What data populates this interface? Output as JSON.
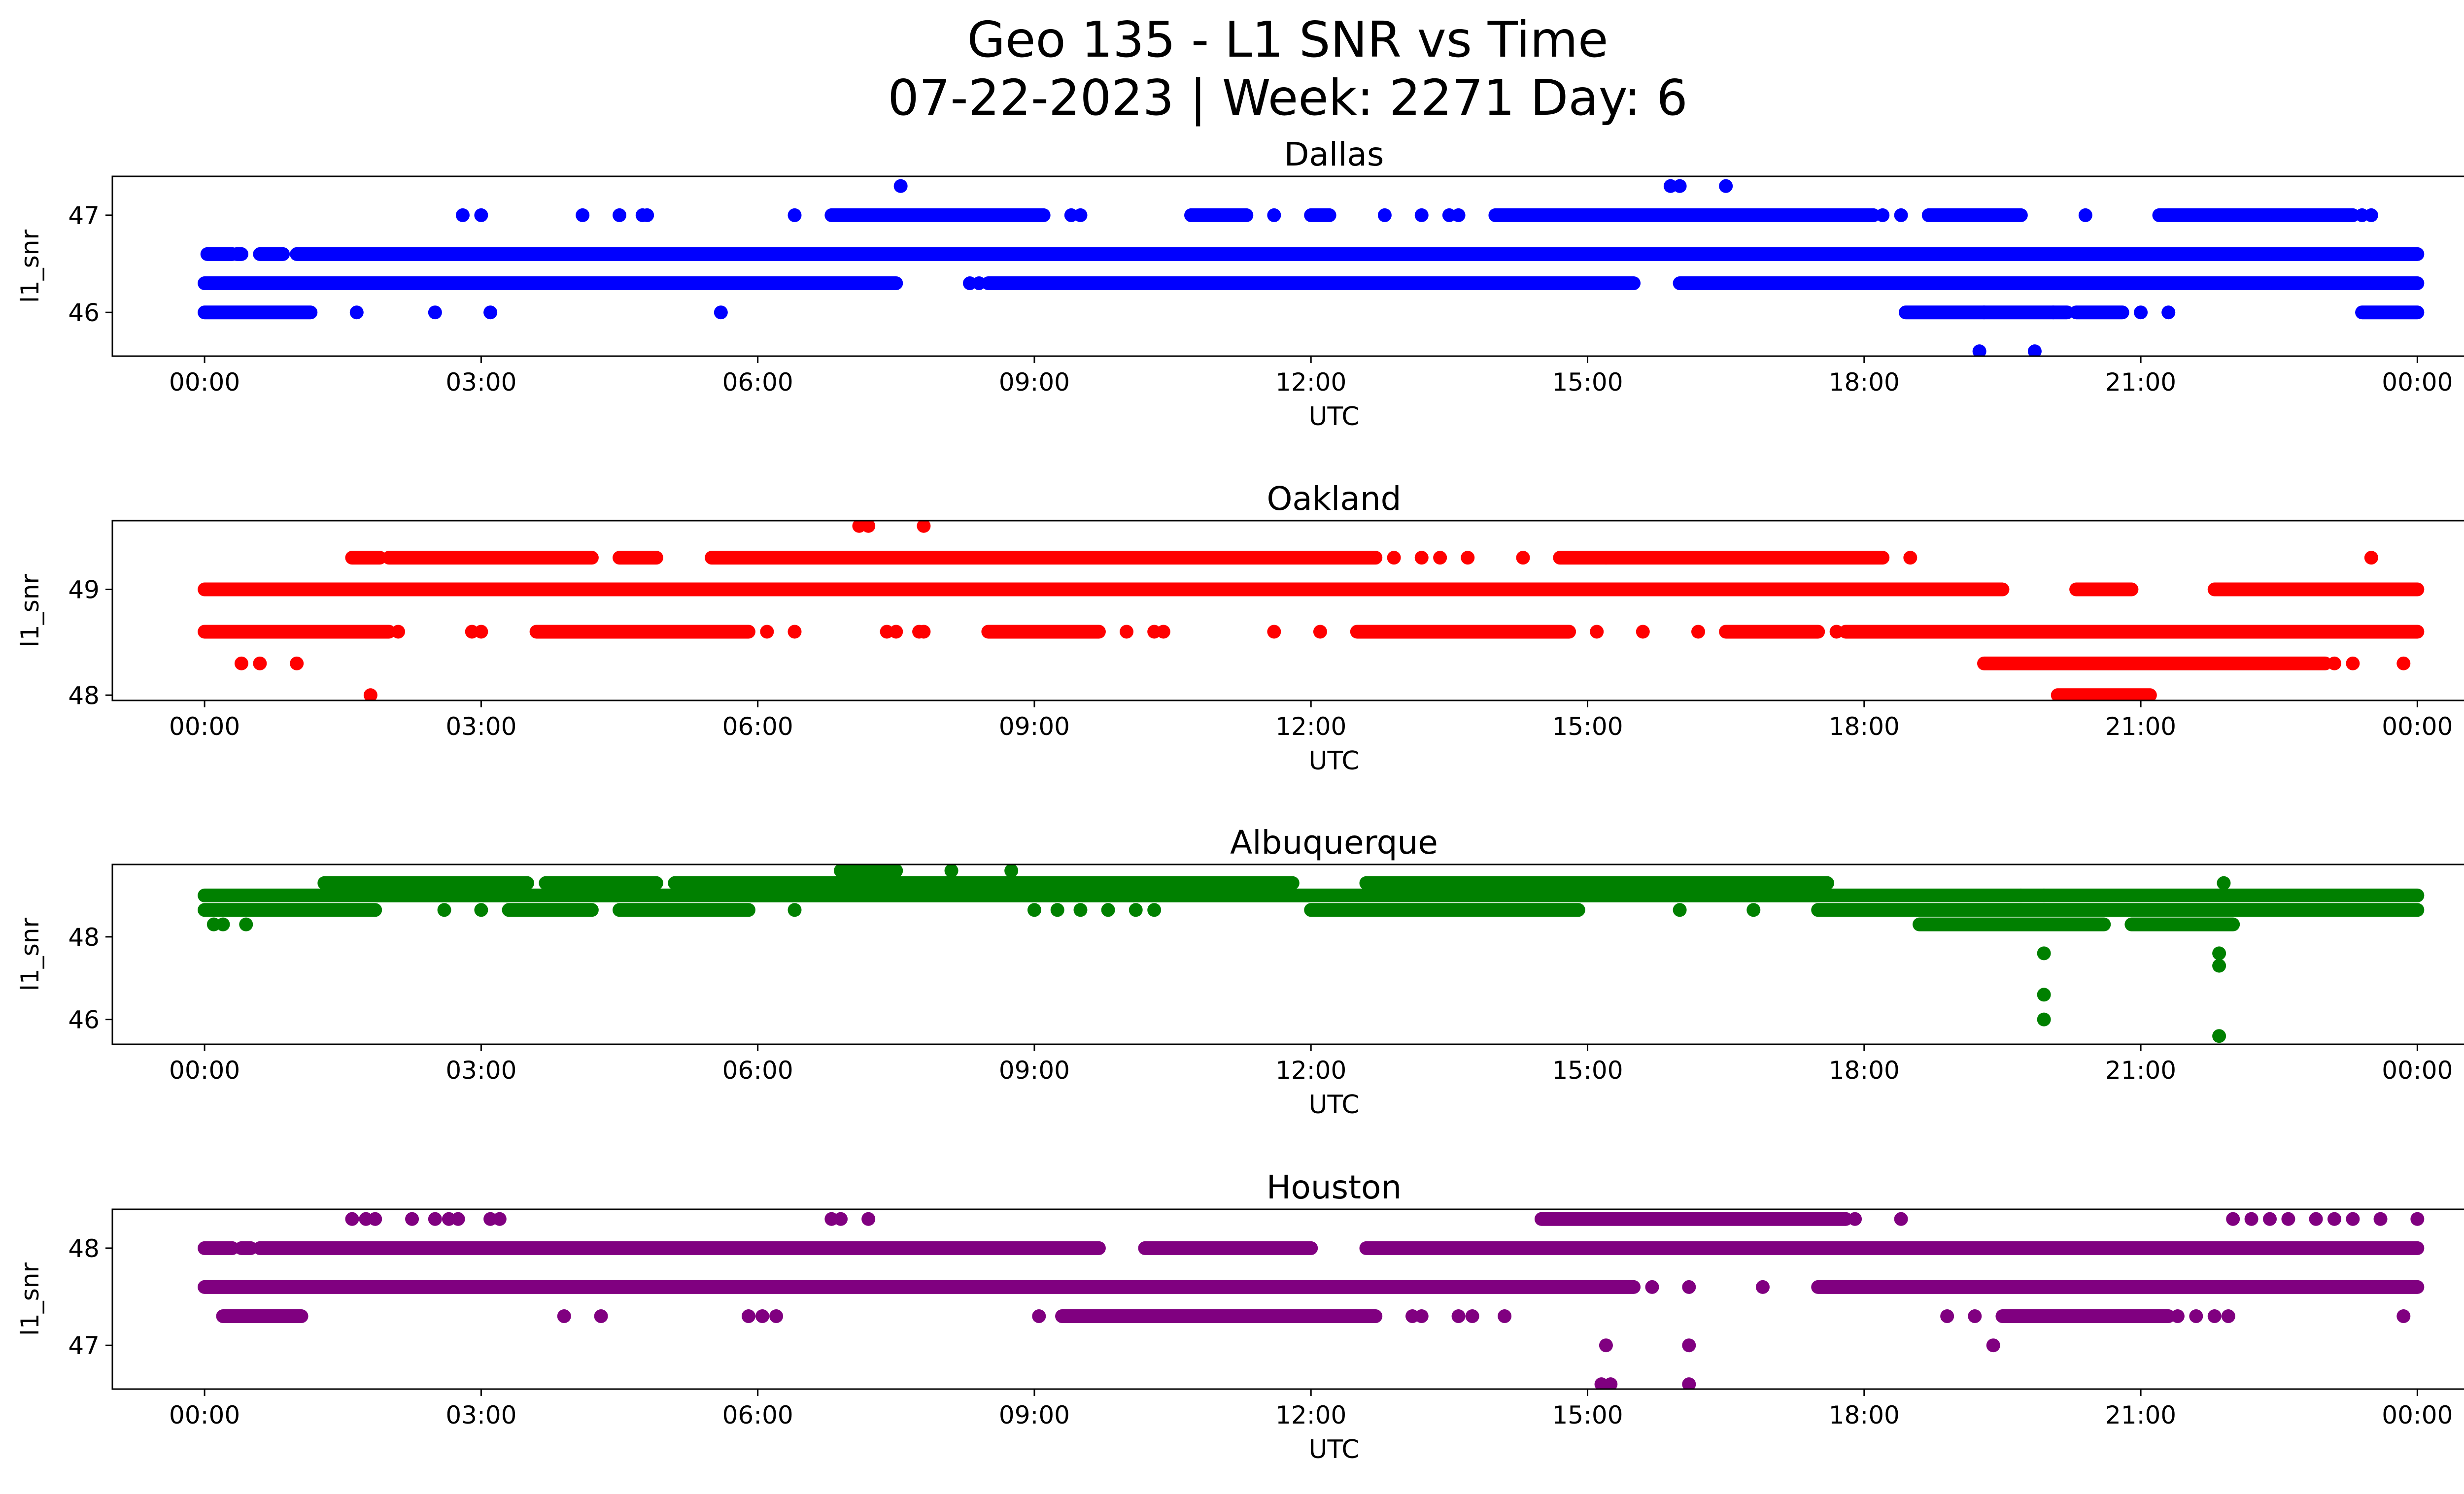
{
  "figure": {
    "title_line1": "Geo 135 - L1 SNR vs Time",
    "title_line2": "07-22-2023 | Week: 2271 Day: 6"
  },
  "chart_data": [
    {
      "type": "scatter",
      "title": "Dallas",
      "xlabel": "UTC",
      "ylabel": "l1_snr",
      "color": "#0000ff",
      "xlim_hours": [
        -1.0,
        25.5
      ],
      "ylim": [
        45.55,
        47.4
      ],
      "xticks": [
        0,
        3,
        6,
        9,
        12,
        15,
        18,
        21,
        24
      ],
      "xtick_labels": [
        "00:00",
        "03:00",
        "06:00",
        "09:00",
        "12:00",
        "15:00",
        "18:00",
        "21:00",
        "00:00"
      ],
      "yticks": [
        46,
        47
      ],
      "ytick_labels": [
        "46",
        "47"
      ],
      "bands": [
        {
          "y": 46.6,
          "segments": [
            [
              0.03,
              0.3
            ],
            [
              0.35,
              0.4
            ],
            [
              0.6,
              0.85
            ],
            [
              1.0,
              24.0
            ]
          ]
        },
        {
          "y": 46.3,
          "segments": [
            [
              0.0,
              7.5
            ],
            [
              8.5,
              15.5
            ],
            [
              16.0,
              24.0
            ]
          ]
        },
        {
          "y": 47.0,
          "segments": [
            [
              6.8,
              9.1
            ],
            [
              10.7,
              11.3
            ],
            [
              12.0,
              12.2
            ],
            [
              14.0,
              18.1
            ],
            [
              18.7,
              19.7
            ],
            [
              21.2,
              23.3
            ]
          ]
        },
        {
          "y": 46.0,
          "segments": [
            [
              0.0,
              1.15
            ],
            [
              18.45,
              19.3
            ],
            [
              19.3,
              20.2
            ],
            [
              20.3,
              20.8
            ],
            [
              23.4,
              24.0
            ]
          ]
        }
      ],
      "points": [
        [
          2.8,
          47.0
        ],
        [
          3.0,
          47.0
        ],
        [
          4.1,
          47.0
        ],
        [
          4.5,
          47.0
        ],
        [
          4.75,
          47.0
        ],
        [
          4.8,
          47.0
        ],
        [
          6.4,
          47.0
        ],
        [
          9.4,
          47.0
        ],
        [
          9.5,
          47.0
        ],
        [
          11.6,
          47.0
        ],
        [
          12.8,
          47.0
        ],
        [
          13.2,
          47.0
        ],
        [
          13.5,
          47.0
        ],
        [
          13.6,
          47.0
        ],
        [
          18.2,
          47.0
        ],
        [
          18.4,
          47.0
        ],
        [
          20.4,
          47.0
        ],
        [
          23.4,
          47.0
        ],
        [
          23.5,
          47.0
        ],
        [
          7.55,
          47.3
        ],
        [
          15.9,
          47.3
        ],
        [
          16.0,
          47.3
        ],
        [
          16.5,
          47.3
        ],
        [
          8.3,
          46.3
        ],
        [
          8.4,
          46.3
        ],
        [
          8.9,
          46.3
        ],
        [
          14.8,
          46.3
        ],
        [
          15.2,
          46.3
        ],
        [
          16.7,
          46.3
        ],
        [
          17.3,
          46.3
        ],
        [
          1.65,
          46.0
        ],
        [
          2.5,
          46.0
        ],
        [
          3.1,
          46.0
        ],
        [
          5.6,
          46.0
        ],
        [
          20.05,
          46.0
        ],
        [
          21.0,
          46.0
        ],
        [
          21.3,
          46.0
        ],
        [
          19.25,
          45.6
        ],
        [
          19.85,
          45.6
        ]
      ]
    },
    {
      "type": "scatter",
      "title": "Oakland",
      "xlabel": "UTC",
      "ylabel": "l1_snr",
      "color": "#ff0000",
      "xlim_hours": [
        -1.0,
        25.5
      ],
      "ylim": [
        47.95,
        49.65
      ],
      "xticks": [
        0,
        3,
        6,
        9,
        12,
        15,
        18,
        21,
        24
      ],
      "xtick_labels": [
        "00:00",
        "03:00",
        "06:00",
        "09:00",
        "12:00",
        "15:00",
        "18:00",
        "21:00",
        "00:00"
      ],
      "yticks": [
        48,
        49
      ],
      "ytick_labels": [
        "48",
        "49"
      ],
      "bands": [
        {
          "y": 49.0,
          "segments": [
            [
              0.0,
              19.5
            ],
            [
              20.3,
              20.9
            ],
            [
              21.8,
              24.0
            ]
          ]
        },
        {
          "y": 48.6,
          "segments": [
            [
              0.0,
              2.0
            ],
            [
              3.6,
              5.9
            ],
            [
              8.5,
              9.7
            ],
            [
              12.5,
              14.8
            ],
            [
              16.5,
              17.5
            ],
            [
              17.8,
              24.0
            ]
          ]
        },
        {
          "y": 49.3,
          "segments": [
            [
              1.6,
              1.9
            ],
            [
              2.0,
              4.2
            ],
            [
              4.5,
              4.9
            ],
            [
              5.5,
              12.7
            ],
            [
              14.7,
              15.2
            ],
            [
              15.2,
              18.2
            ]
          ]
        },
        {
          "y": 48.3,
          "segments": [
            [
              19.3,
              23.0
            ]
          ]
        },
        {
          "y": 48.0,
          "segments": [
            [
              20.1,
              21.1
            ]
          ]
        }
      ],
      "points": [
        [
          0.4,
          48.3
        ],
        [
          0.6,
          48.3
        ],
        [
          1.0,
          48.3
        ],
        [
          1.8,
          48.0
        ],
        [
          2.1,
          48.6
        ],
        [
          2.9,
          48.6
        ],
        [
          3.0,
          48.6
        ],
        [
          6.1,
          48.6
        ],
        [
          6.4,
          48.6
        ],
        [
          7.4,
          48.6
        ],
        [
          7.5,
          48.6
        ],
        [
          7.75,
          48.6
        ],
        [
          7.8,
          48.6
        ],
        [
          10.0,
          48.6
        ],
        [
          10.3,
          48.6
        ],
        [
          10.4,
          48.6
        ],
        [
          11.6,
          48.6
        ],
        [
          12.1,
          48.6
        ],
        [
          15.1,
          48.6
        ],
        [
          15.6,
          48.6
        ],
        [
          16.2,
          48.6
        ],
        [
          17.7,
          48.6
        ],
        [
          7.1,
          49.6
        ],
        [
          7.2,
          49.6
        ],
        [
          7.8,
          49.6
        ],
        [
          12.9,
          49.3
        ],
        [
          13.2,
          49.3
        ],
        [
          13.4,
          49.3
        ],
        [
          13.7,
          49.3
        ],
        [
          14.3,
          49.3
        ],
        [
          18.5,
          49.3
        ],
        [
          23.5,
          49.3
        ],
        [
          23.1,
          48.3
        ],
        [
          23.3,
          48.3
        ],
        [
          23.85,
          48.3
        ]
      ]
    },
    {
      "type": "scatter",
      "title": "Albuquerque",
      "xlabel": "UTC",
      "ylabel": "l1_snr",
      "color": "#008000",
      "xlim_hours": [
        -1.0,
        25.5
      ],
      "ylim": [
        45.4,
        49.75
      ],
      "xticks": [
        0,
        3,
        6,
        9,
        12,
        15,
        18,
        21,
        24
      ],
      "xtick_labels": [
        "00:00",
        "03:00",
        "06:00",
        "09:00",
        "12:00",
        "15:00",
        "18:00",
        "21:00",
        "00:00"
      ],
      "yticks": [
        46,
        48
      ],
      "ytick_labels": [
        "46",
        "48"
      ],
      "bands": [
        {
          "y": 49.0,
          "segments": [
            [
              0.0,
              24.0
            ]
          ]
        },
        {
          "y": 48.65,
          "segments": [
            [
              0.0,
              1.85
            ],
            [
              3.3,
              4.2
            ],
            [
              4.5,
              5.9
            ],
            [
              12.0,
              14.9
            ],
            [
              17.5,
              24.0
            ]
          ]
        },
        {
          "y": 49.3,
          "segments": [
            [
              1.3,
              3.5
            ],
            [
              3.7,
              4.9
            ],
            [
              5.1,
              11.8
            ],
            [
              12.6,
              17.6
            ]
          ]
        },
        {
          "y": 48.3,
          "segments": [
            [
              18.6,
              20.6
            ],
            [
              20.9,
              22.0
            ]
          ]
        },
        {
          "y": 49.6,
          "segments": [
            [
              6.9,
              7.5
            ]
          ]
        }
      ],
      "points": [
        [
          0.1,
          48.3
        ],
        [
          0.2,
          48.3
        ],
        [
          0.45,
          48.3
        ],
        [
          2.6,
          48.65
        ],
        [
          3.0,
          48.65
        ],
        [
          6.4,
          48.65
        ],
        [
          9.0,
          48.65
        ],
        [
          9.25,
          48.65
        ],
        [
          9.5,
          48.65
        ],
        [
          9.8,
          48.65
        ],
        [
          10.1,
          48.65
        ],
        [
          10.3,
          48.65
        ],
        [
          16.0,
          48.65
        ],
        [
          16.8,
          48.65
        ],
        [
          8.1,
          49.6
        ],
        [
          8.75,
          49.6
        ],
        [
          19.7,
          49.0
        ],
        [
          19.95,
          49.0
        ],
        [
          21.9,
          49.3
        ],
        [
          19.95,
          47.6
        ],
        [
          19.95,
          46.6
        ],
        [
          19.95,
          46.0
        ],
        [
          21.85,
          47.6
        ],
        [
          21.85,
          47.3
        ],
        [
          21.85,
          45.6
        ]
      ]
    },
    {
      "type": "scatter",
      "title": "Houston",
      "xlabel": "UTC",
      "ylabel": "l1_snr",
      "color": "#800080",
      "xlim_hours": [
        -1.0,
        25.5
      ],
      "ylim": [
        46.55,
        48.4
      ],
      "xticks": [
        0,
        3,
        6,
        9,
        12,
        15,
        18,
        21,
        24
      ],
      "xtick_labels": [
        "00:00",
        "03:00",
        "06:00",
        "09:00",
        "12:00",
        "15:00",
        "18:00",
        "21:00",
        "00:00"
      ],
      "yticks": [
        47,
        48
      ],
      "ytick_labels": [
        "47",
        "48"
      ],
      "bands": [
        {
          "y": 47.6,
          "segments": [
            [
              0.0,
              15.5
            ],
            [
              17.5,
              24.0
            ]
          ]
        },
        {
          "y": 48.0,
          "segments": [
            [
              0.0,
              0.3
            ],
            [
              0.4,
              0.5
            ],
            [
              0.6,
              9.7
            ],
            [
              10.2,
              12.0
            ],
            [
              12.6,
              24.0
            ]
          ]
        },
        {
          "y": 48.3,
          "segments": [
            [
              14.5,
              17.8
            ]
          ]
        },
        {
          "y": 47.3,
          "segments": [
            [
              0.2,
              1.05
            ],
            [
              9.3,
              12.7
            ],
            [
              19.5,
              21.3
            ]
          ]
        }
      ],
      "points": [
        [
          1.6,
          48.3
        ],
        [
          1.75,
          48.3
        ],
        [
          1.85,
          48.3
        ],
        [
          2.25,
          48.3
        ],
        [
          2.5,
          48.3
        ],
        [
          2.65,
          48.3
        ],
        [
          2.75,
          48.3
        ],
        [
          3.1,
          48.3
        ],
        [
          3.2,
          48.3
        ],
        [
          6.8,
          48.3
        ],
        [
          6.9,
          48.3
        ],
        [
          7.2,
          48.3
        ],
        [
          17.9,
          48.3
        ],
        [
          18.4,
          48.3
        ],
        [
          22.0,
          48.3
        ],
        [
          22.2,
          48.3
        ],
        [
          22.4,
          48.3
        ],
        [
          22.6,
          48.3
        ],
        [
          22.9,
          48.3
        ],
        [
          23.1,
          48.3
        ],
        [
          23.3,
          48.3
        ],
        [
          23.6,
          48.3
        ],
        [
          24.0,
          48.3
        ],
        [
          3.9,
          47.3
        ],
        [
          4.3,
          47.3
        ],
        [
          5.9,
          47.3
        ],
        [
          6.05,
          47.3
        ],
        [
          6.2,
          47.3
        ],
        [
          9.05,
          47.3
        ],
        [
          13.1,
          47.3
        ],
        [
          13.2,
          47.3
        ],
        [
          13.6,
          47.3
        ],
        [
          13.75,
          47.3
        ],
        [
          14.1,
          47.3
        ],
        [
          18.9,
          47.3
        ],
        [
          19.2,
          47.3
        ],
        [
          21.4,
          47.3
        ],
        [
          21.6,
          47.3
        ],
        [
          21.8,
          47.3
        ],
        [
          21.95,
          47.3
        ],
        [
          23.85,
          47.3
        ],
        [
          15.7,
          47.6
        ],
        [
          16.1,
          47.6
        ],
        [
          16.9,
          47.6
        ],
        [
          15.2,
          47.0
        ],
        [
          16.1,
          47.0
        ],
        [
          19.4,
          47.0
        ],
        [
          15.15,
          46.6
        ],
        [
          15.25,
          46.6
        ],
        [
          16.1,
          46.6
        ]
      ]
    }
  ]
}
